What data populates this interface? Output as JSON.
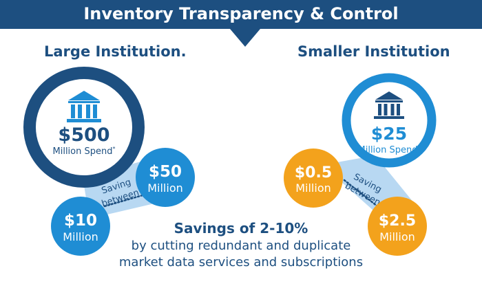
{
  "header": {
    "title": "Inventory Transparency & Control"
  },
  "colors": {
    "navy": "#1d4f80",
    "dark_ring": "#1d4f80",
    "blue": "#1f8dd4",
    "orange": "#f3a21c",
    "light_blue": "#b8d8f2",
    "white": "#ffffff"
  },
  "large": {
    "title": "Large Institution.",
    "spend_amount": "$500",
    "spend_label": "Million Spend",
    "spend_mark": "*",
    "saving_label": [
      "Saving",
      "between"
    ],
    "low": {
      "amount": "$10",
      "unit": "Million"
    },
    "high": {
      "amount": "$50",
      "unit": "Million"
    }
  },
  "small": {
    "title": "Smaller Institution",
    "spend_amount": "$25",
    "spend_label": "Million Spend",
    "spend_mark": "*",
    "saving_label": [
      "Saving",
      "between"
    ],
    "low": {
      "amount": "$0.5",
      "unit": "Million"
    },
    "high": {
      "amount": "$2.5",
      "unit": "Million"
    }
  },
  "savings": {
    "headline": "Savings of 2-10%",
    "line1": "by cutting redundant and duplicate",
    "line2": "market data services and subscriptions"
  },
  "icons": [
    "bank-icon",
    "bank-icon"
  ]
}
